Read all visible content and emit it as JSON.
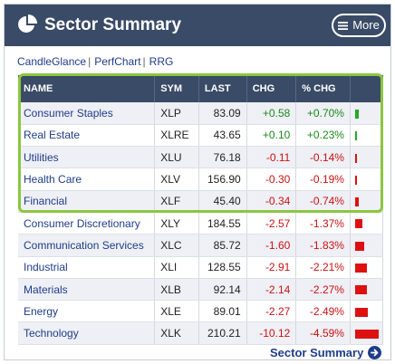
{
  "header": {
    "title": "Sector Summary",
    "more_label": "More"
  },
  "links": [
    {
      "label": "CandleGlance"
    },
    {
      "label": "PerfChart"
    },
    {
      "label": "RRG"
    }
  ],
  "link_separator": "|",
  "table": {
    "columns": [
      "NAME",
      "SYM",
      "LAST",
      "CHG",
      "% CHG",
      ""
    ],
    "rows": [
      {
        "name": "Consumer Staples",
        "sym": "XLP",
        "last": "83.09",
        "chg": "+0.58",
        "pct": "+0.70%",
        "pct_value": 0.7
      },
      {
        "name": "Real Estate",
        "sym": "XLRE",
        "last": "43.65",
        "chg": "+0.10",
        "pct": "+0.23%",
        "pct_value": 0.23
      },
      {
        "name": "Utilities",
        "sym": "XLU",
        "last": "76.18",
        "chg": "-0.11",
        "pct": "-0.14%",
        "pct_value": -0.14
      },
      {
        "name": "Health Care",
        "sym": "XLV",
        "last": "156.90",
        "chg": "-0.30",
        "pct": "-0.19%",
        "pct_value": -0.19
      },
      {
        "name": "Financial",
        "sym": "XLF",
        "last": "45.40",
        "chg": "-0.34",
        "pct": "-0.74%",
        "pct_value": -0.74
      },
      {
        "name": "Consumer Discretionary",
        "sym": "XLY",
        "last": "184.55",
        "chg": "-2.57",
        "pct": "-1.37%",
        "pct_value": -1.37
      },
      {
        "name": "Communication Services",
        "sym": "XLC",
        "last": "85.72",
        "chg": "-1.60",
        "pct": "-1.83%",
        "pct_value": -1.83
      },
      {
        "name": "Industrial",
        "sym": "XLI",
        "last": "128.55",
        "chg": "-2.91",
        "pct": "-2.21%",
        "pct_value": -2.21
      },
      {
        "name": "Materials",
        "sym": "XLB",
        "last": "92.14",
        "chg": "-2.14",
        "pct": "-2.27%",
        "pct_value": -2.27
      },
      {
        "name": "Energy",
        "sym": "XLE",
        "last": "89.01",
        "chg": "-2.27",
        "pct": "-2.49%",
        "pct_value": -2.49
      },
      {
        "name": "Technology",
        "sym": "XLK",
        "last": "210.21",
        "chg": "-10.12",
        "pct": "-4.59%",
        "pct_value": -4.59
      }
    ]
  },
  "footer": {
    "link_label": "Sector Summary"
  },
  "colors": {
    "header_bg": "#394b66",
    "positive": "#1a8a1a",
    "negative": "#cc1111",
    "positive_bar": "#22aa22",
    "negative_bar": "#dd1111",
    "link": "#1f3c8a",
    "highlight": "#8cc63f"
  },
  "icons": {
    "title": "pie-chart-icon",
    "more": "hamburger-menu-icon",
    "footer": "circle-arrow-right-icon"
  }
}
